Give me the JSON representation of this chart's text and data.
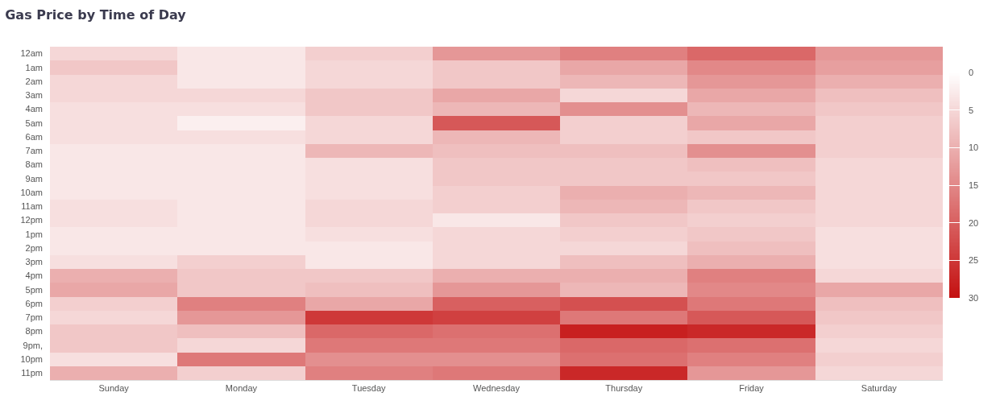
{
  "chart_data": {
    "type": "heatmap",
    "title": "Gas Price by Time of Day",
    "categories": [
      "Sunday",
      "Monday",
      "Tuesday",
      "Wednesday",
      "Thursday",
      "Friday",
      "Saturday"
    ],
    "y_categories": [
      "12am",
      "1am",
      "2am",
      "3am",
      "4am",
      "5am",
      "6am",
      "7am",
      "8am",
      "9am",
      "10am",
      "11am",
      "12pm",
      "1pm",
      "2pm",
      "3pm",
      "4pm",
      "5pm",
      "6pm",
      "7pm",
      "8pm",
      "9pm,",
      "10pm",
      "11pm"
    ],
    "cells": [
      [
        5,
        3,
        6,
        13,
        16,
        19,
        13
      ],
      [
        7,
        3,
        5,
        7,
        11,
        15,
        12
      ],
      [
        5,
        3,
        5,
        7,
        9,
        13,
        10
      ],
      [
        5,
        5,
        7,
        11,
        5,
        11,
        8
      ],
      [
        4,
        4,
        7,
        9,
        14,
        9,
        7
      ],
      [
        4,
        2,
        5,
        21,
        6,
        11,
        6
      ],
      [
        4,
        4,
        5,
        9,
        6,
        7,
        6
      ],
      [
        3,
        3,
        9,
        8,
        8,
        14,
        6
      ],
      [
        3,
        3,
        4,
        7,
        7,
        8,
        5
      ],
      [
        3,
        3,
        4,
        7,
        7,
        7,
        5
      ],
      [
        3,
        3,
        4,
        6,
        10,
        9,
        5
      ],
      [
        4,
        3,
        5,
        6,
        9,
        7,
        5
      ],
      [
        4,
        3,
        5,
        3,
        7,
        6,
        5
      ],
      [
        3,
        3,
        4,
        5,
        6,
        7,
        4
      ],
      [
        3,
        3,
        3,
        5,
        5,
        8,
        4
      ],
      [
        4,
        6,
        3,
        5,
        8,
        10,
        4
      ],
      [
        10,
        7,
        7,
        10,
        10,
        16,
        5
      ],
      [
        11,
        7,
        8,
        13,
        9,
        15,
        11
      ],
      [
        6,
        16,
        11,
        20,
        22,
        17,
        8
      ],
      [
        5,
        13,
        25,
        24,
        17,
        21,
        7
      ],
      [
        7,
        8,
        19,
        18,
        28,
        27,
        6
      ],
      [
        7,
        5,
        17,
        17,
        19,
        18,
        5
      ],
      [
        4,
        17,
        14,
        14,
        18,
        16,
        6
      ],
      [
        10,
        6,
        16,
        17,
        27,
        13,
        5
      ]
    ],
    "clim": [
      0,
      30
    ],
    "cticks": [
      0,
      5,
      10,
      15,
      20,
      25,
      30
    ]
  }
}
